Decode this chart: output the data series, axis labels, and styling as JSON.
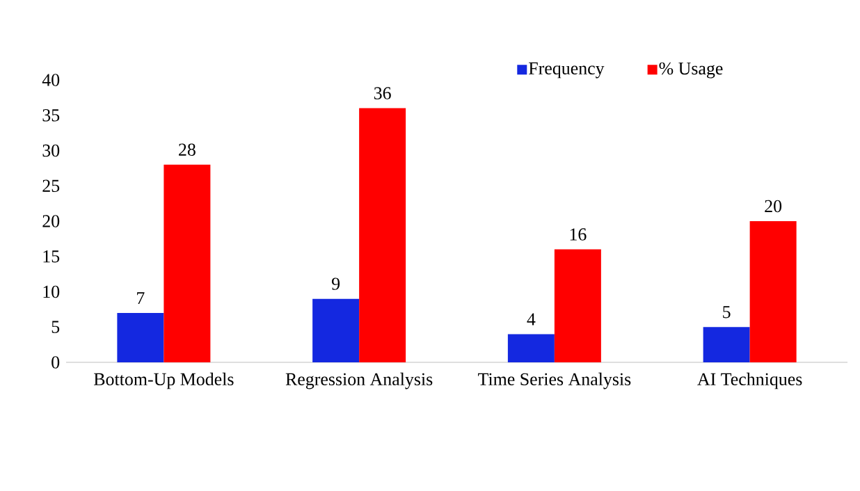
{
  "chart_data": {
    "type": "bar",
    "categories": [
      "Bottom-Up Models",
      "Regression Analysis",
      "Time Series Analysis",
      "AI Techniques"
    ],
    "series": [
      {
        "name": "Frequency",
        "color": "#1428e0",
        "values": [
          7,
          9,
          4,
          5
        ]
      },
      {
        "name": "% Usage",
        "color": "#ff0000",
        "values": [
          28,
          36,
          16,
          20
        ]
      }
    ],
    "ylim": [
      0,
      40
    ],
    "yticks": [
      0,
      5,
      10,
      15,
      20,
      25,
      30,
      35,
      40
    ],
    "data_labels": true,
    "legend": "top"
  }
}
